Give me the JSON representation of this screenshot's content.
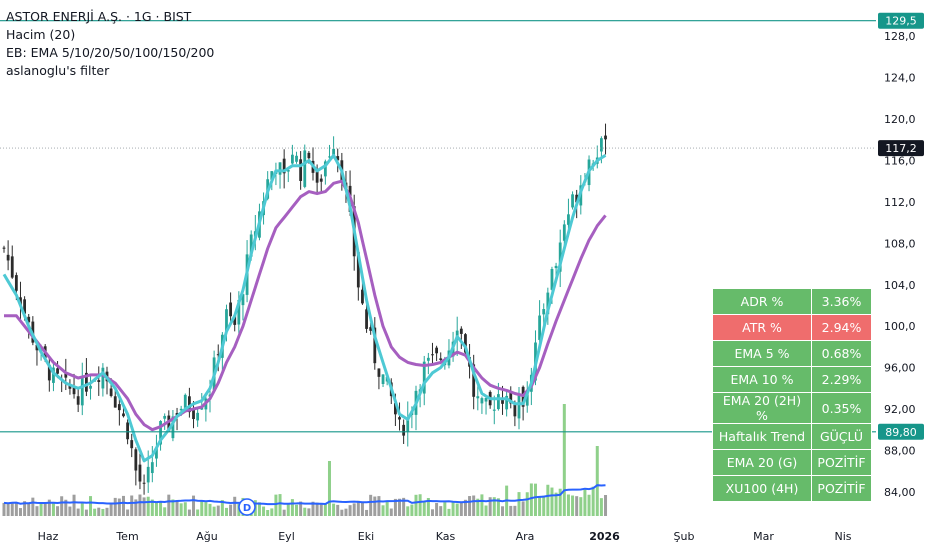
{
  "legend": {
    "title": "ASTOR ENERJİ A.Ş. · 1G · BIST",
    "volume": "Hacim (20)",
    "ema_bundle": "EB: EMA 5/10/20/50/100/150/200",
    "filter": "aslanoglu's filter"
  },
  "price_axis": {
    "ticks": [
      "128,0",
      "124,0",
      "120,0",
      "116,0",
      "112,0",
      "108,0",
      "104,0",
      "100,0",
      "96,00",
      "92,00",
      "88,00",
      "84,00"
    ],
    "tick_values": [
      128,
      124,
      120,
      116,
      112,
      108,
      104,
      100,
      96,
      92,
      88,
      84
    ],
    "labels": [
      {
        "text": "129,5",
        "value": 129.5
      },
      {
        "text": "117,2",
        "value": 117.2
      },
      {
        "text": "89,80",
        "value": 89.8
      }
    ]
  },
  "time_axis": {
    "labels": [
      "Haz",
      "Tem",
      "Ağu",
      "Eyl",
      "Eki",
      "Kas",
      "Ara",
      "2026",
      "Şub",
      "Mar",
      "Nis"
    ]
  },
  "markers": {
    "dividend": "D"
  },
  "metrics": [
    {
      "label": "ADR %",
      "value": "3.36%",
      "color": "#66bb6a"
    },
    {
      "label": "ATR %",
      "value": "2.94%",
      "color": "#ef6d6d"
    },
    {
      "label": "EMA 5 %",
      "value": "0.68%",
      "color": "#66bb6a"
    },
    {
      "label": "EMA 10 %",
      "value": "2.29%",
      "color": "#66bb6a"
    },
    {
      "label": "EMA 20 (2H) %",
      "value": "0.35%",
      "color": "#66bb6a"
    },
    {
      "label": "Haftalık Trend",
      "value": "GÜÇLÜ",
      "color": "#66bb6a"
    },
    {
      "label": "EMA 20 (G)",
      "value": "POZİTİF",
      "color": "#66bb6a"
    },
    {
      "label": "XU100 (4H)",
      "value": "POZİTİF",
      "color": "#66bb6a"
    }
  ],
  "colors": {
    "up": "#26a69a",
    "down": "#2b2b2b",
    "ema_fast": "#4ec9d4",
    "ema_slow": "#a65fc0",
    "vol_avg": "#2962ff",
    "hline": "#16968a",
    "vol_up": "#8fd08a",
    "vol_down": "#9e9e9e"
  },
  "chart_data": {
    "type": "candlestick",
    "symbol": "ASTOR ENERJİ A.Ş.",
    "interval": "1G",
    "exchange": "BIST",
    "y_range": [
      80.8,
      131.5
    ],
    "horizontal_lines": [
      129.5,
      89.8
    ],
    "last_price": 117.2,
    "close_path": [
      [
        0,
        107.5
      ],
      [
        3,
        104
      ],
      [
        6,
        100
      ],
      [
        9,
        97
      ],
      [
        12,
        95
      ],
      [
        15,
        94
      ],
      [
        18,
        93.5
      ],
      [
        21,
        95
      ],
      [
        24,
        96
      ],
      [
        27,
        93
      ],
      [
        30,
        90
      ],
      [
        32,
        86
      ],
      [
        34,
        84
      ],
      [
        36,
        87
      ],
      [
        38,
        90
      ],
      [
        40,
        90.5
      ],
      [
        42,
        92
      ],
      [
        44,
        92.5
      ],
      [
        46,
        92
      ],
      [
        48,
        93
      ],
      [
        50,
        94
      ],
      [
        52,
        98
      ],
      [
        54,
        101
      ],
      [
        56,
        100
      ],
      [
        58,
        104
      ],
      [
        60,
        108
      ],
      [
        62,
        111
      ],
      [
        64,
        114
      ],
      [
        66,
        116
      ],
      [
        68,
        114
      ],
      [
        70,
        117
      ],
      [
        72,
        115
      ],
      [
        74,
        117
      ],
      [
        76,
        113
      ],
      [
        78,
        116
      ],
      [
        80,
        118
      ],
      [
        82,
        115
      ],
      [
        84,
        110
      ],
      [
        86,
        104
      ],
      [
        88,
        100
      ],
      [
        90,
        97
      ],
      [
        92,
        95
      ],
      [
        94,
        93
      ],
      [
        96,
        90
      ],
      [
        98,
        91
      ],
      [
        100,
        94
      ],
      [
        102,
        96
      ],
      [
        104,
        96.5
      ],
      [
        106,
        97
      ],
      [
        108,
        98
      ],
      [
        110,
        100.5
      ],
      [
        112,
        98
      ],
      [
        114,
        93.5
      ],
      [
        116,
        92
      ],
      [
        118,
        92
      ],
      [
        120,
        93.5
      ],
      [
        122,
        93
      ],
      [
        124,
        92
      ],
      [
        126,
        93
      ],
      [
        128,
        96
      ],
      [
        130,
        100
      ],
      [
        132,
        104
      ],
      [
        134,
        106
      ],
      [
        136,
        110
      ],
      [
        138,
        112
      ],
      [
        140,
        114
      ],
      [
        142,
        116
      ],
      [
        144,
        117
      ],
      [
        146,
        117.2
      ]
    ],
    "ema_fast": [
      [
        0,
        105
      ],
      [
        3,
        103
      ],
      [
        6,
        100
      ],
      [
        9,
        97.5
      ],
      [
        12,
        95.5
      ],
      [
        15,
        94.5
      ],
      [
        18,
        94
      ],
      [
        21,
        94.5
      ],
      [
        24,
        95.5
      ],
      [
        27,
        94
      ],
      [
        30,
        91.5
      ],
      [
        32,
        89
      ],
      [
        34,
        87
      ],
      [
        36,
        87.5
      ],
      [
        38,
        89
      ],
      [
        40,
        90
      ],
      [
        42,
        91.3
      ],
      [
        44,
        92
      ],
      [
        46,
        92.5
      ],
      [
        48,
        92.8
      ],
      [
        50,
        94
      ],
      [
        52,
        96.5
      ],
      [
        54,
        99.5
      ],
      [
        56,
        101
      ],
      [
        58,
        103.5
      ],
      [
        60,
        107
      ],
      [
        62,
        110
      ],
      [
        64,
        113
      ],
      [
        66,
        115
      ],
      [
        68,
        115
      ],
      [
        70,
        115.5
      ],
      [
        72,
        115.5
      ],
      [
        74,
        116
      ],
      [
        76,
        115
      ],
      [
        78,
        115.5
      ],
      [
        80,
        116.5
      ],
      [
        82,
        115
      ],
      [
        84,
        111.5
      ],
      [
        86,
        107
      ],
      [
        88,
        102.5
      ],
      [
        90,
        99
      ],
      [
        92,
        96.5
      ],
      [
        94,
        94
      ],
      [
        96,
        91.5
      ],
      [
        98,
        91
      ],
      [
        100,
        92.5
      ],
      [
        102,
        94.5
      ],
      [
        104,
        95.5
      ],
      [
        106,
        96
      ],
      [
        108,
        97
      ],
      [
        110,
        99
      ],
      [
        112,
        98
      ],
      [
        114,
        95.5
      ],
      [
        116,
        93.5
      ],
      [
        118,
        93
      ],
      [
        120,
        93
      ],
      [
        122,
        93
      ],
      [
        124,
        92.5
      ],
      [
        126,
        92.5
      ],
      [
        128,
        94.5
      ],
      [
        130,
        98
      ],
      [
        132,
        101.5
      ],
      [
        134,
        104.5
      ],
      [
        136,
        107.5
      ],
      [
        138,
        110.5
      ],
      [
        140,
        113
      ],
      [
        142,
        115
      ],
      [
        144,
        116
      ],
      [
        146,
        116.5
      ]
    ],
    "ema_slow": [
      [
        0,
        101
      ],
      [
        3,
        101
      ],
      [
        6,
        99.5
      ],
      [
        9,
        98
      ],
      [
        12,
        96.5
      ],
      [
        15,
        95.5
      ],
      [
        18,
        95
      ],
      [
        21,
        95.3
      ],
      [
        24,
        95.3
      ],
      [
        27,
        94.5
      ],
      [
        30,
        93
      ],
      [
        32,
        91.5
      ],
      [
        34,
        90.5
      ],
      [
        36,
        90
      ],
      [
        38,
        90.3
      ],
      [
        40,
        90.8
      ],
      [
        42,
        91.3
      ],
      [
        44,
        91.8
      ],
      [
        46,
        92
      ],
      [
        48,
        92.2
      ],
      [
        50,
        93
      ],
      [
        52,
        94.5
      ],
      [
        54,
        96.5
      ],
      [
        56,
        98
      ],
      [
        58,
        100
      ],
      [
        60,
        102.5
      ],
      [
        62,
        105
      ],
      [
        64,
        107.5
      ],
      [
        66,
        109.5
      ],
      [
        68,
        110.5
      ],
      [
        70,
        111.5
      ],
      [
        72,
        112.5
      ],
      [
        74,
        113
      ],
      [
        76,
        112.8
      ],
      [
        78,
        113
      ],
      [
        80,
        113.8
      ],
      [
        82,
        114
      ],
      [
        84,
        112.5
      ],
      [
        86,
        110
      ],
      [
        88,
        106.5
      ],
      [
        90,
        103
      ],
      [
        92,
        100
      ],
      [
        94,
        98
      ],
      [
        96,
        97
      ],
      [
        98,
        96.5
      ],
      [
        100,
        96.3
      ],
      [
        102,
        96.2
      ],
      [
        104,
        96.3
      ],
      [
        106,
        96.5
      ],
      [
        108,
        97
      ],
      [
        110,
        97.5
      ],
      [
        112,
        97.2
      ],
      [
        114,
        96
      ],
      [
        116,
        95
      ],
      [
        118,
        94.3
      ],
      [
        120,
        94
      ],
      [
        122,
        93.8
      ],
      [
        124,
        93.5
      ],
      [
        126,
        93.3
      ],
      [
        128,
        94.2
      ],
      [
        130,
        96
      ],
      [
        132,
        98.3
      ],
      [
        134,
        100.5
      ],
      [
        136,
        102.5
      ],
      [
        138,
        104.5
      ],
      [
        140,
        106.5
      ],
      [
        142,
        108.3
      ],
      [
        144,
        109.7
      ],
      [
        146,
        110.7
      ]
    ]
  }
}
